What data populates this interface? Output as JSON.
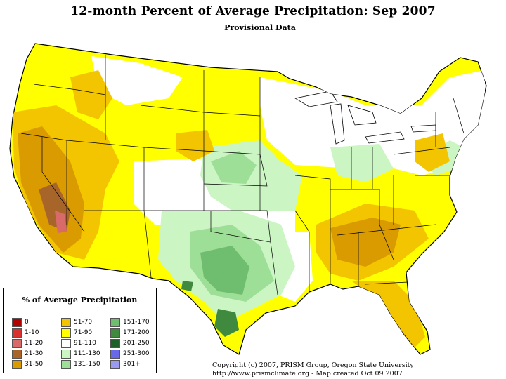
{
  "title": "12-month Percent of Average Precipitation: Sep 2007",
  "subtitle": "Provisional Data",
  "colors": {
    "land": "#ffffff",
    "border": "#000000",
    "dry_51_70": "#f2c500",
    "dry_71_90": "#ffff00",
    "normal_91_110": "#ffffff",
    "wet_111_130": "#ccf5c4",
    "wet_131_150": "#9edf97",
    "wet_151_170": "#6fbe6f",
    "wet_171_200": "#3f8a3f"
  },
  "legend": {
    "title": "% of Average Precipitation",
    "items": [
      {
        "label": "0",
        "color": "#b30000"
      },
      {
        "label": "1-10",
        "color": "#d93030"
      },
      {
        "label": "11-20",
        "color": "#d96a6a"
      },
      {
        "label": "21-30",
        "color": "#a8652a"
      },
      {
        "label": "31-50",
        "color": "#d99b00"
      },
      {
        "label": "51-70",
        "color": "#f2c500"
      },
      {
        "label": "71-90",
        "color": "#ffff00"
      },
      {
        "label": "91-110",
        "color": "#ffffff"
      },
      {
        "label": "111-130",
        "color": "#ccf5c4"
      },
      {
        "label": "131-150",
        "color": "#9edf97"
      },
      {
        "label": "151-170",
        "color": "#6fbe6f"
      },
      {
        "label": "171-200",
        "color": "#3f8a3f"
      },
      {
        "label": "201-250",
        "color": "#1f5f2a"
      },
      {
        "label": "251-300",
        "color": "#6868e8"
      },
      {
        "label": "301+",
        "color": "#9a9af0"
      }
    ]
  },
  "copyright": {
    "line1": "Copyright (c) 2007, PRISM Group, Oregon State University",
    "line2": "http://www.prismclimate.org  -  Map created Oct 09 2007"
  }
}
